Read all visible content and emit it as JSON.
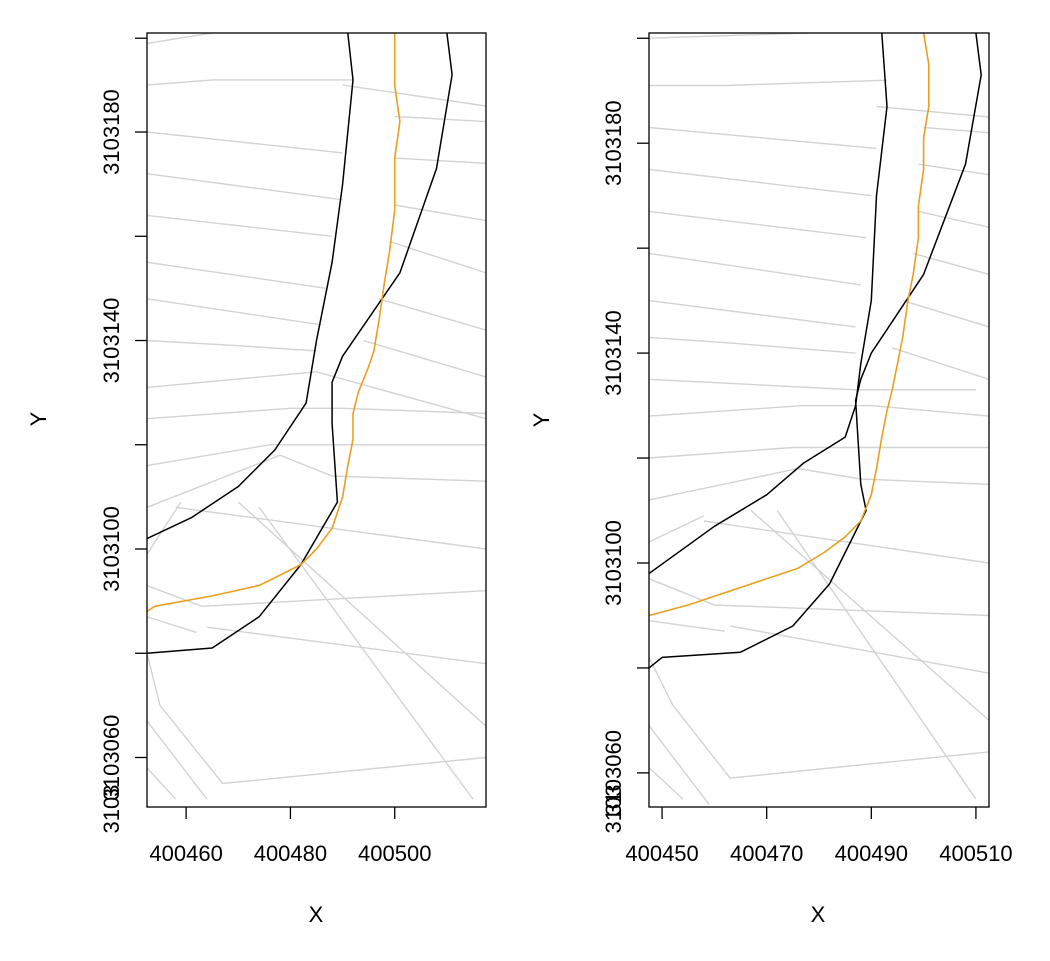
{
  "chart_data": [
    {
      "type": "line",
      "title": "",
      "xlabel": "X",
      "ylabel": "Y",
      "xlim": [
        400452.5,
        400517.5
      ],
      "ylim": [
        3103050.5,
        3103199
      ],
      "xticks": [
        400460,
        400480,
        400500
      ],
      "xtick_labels": [
        "400460",
        "400480",
        "400500"
      ],
      "yticks": [
        3103060,
        3103100,
        3103140,
        3103180
      ],
      "ytick_labels": [
        "3103060",
        "3103100",
        "3103140",
        "3103180"
      ],
      "ytick_minor": [
        3103080,
        3103120,
        3103160,
        3103198
      ],
      "colors": {
        "banks": "#000000",
        "centerline": "#e8a020",
        "voronoi": "#d3d3d3"
      },
      "series": [
        {
          "name": "left-bank",
          "color": "#000000",
          "points": [
            [
              400491,
              3103199
            ],
            [
              400492,
              3103190
            ],
            [
              400490,
              3103170
            ],
            [
              400488,
              3103155
            ],
            [
              400485,
              3103140
            ],
            [
              400483,
              3103128
            ],
            [
              400477,
              3103119
            ],
            [
              400470,
              3103112
            ],
            [
              400461,
              3103106
            ],
            [
              400452.5,
              3103102
            ]
          ]
        },
        {
          "name": "right-bank",
          "color": "#000000",
          "points": [
            [
              400510,
              3103199
            ],
            [
              400511,
              3103191
            ],
            [
              400508,
              3103173
            ],
            [
              400501,
              3103153
            ],
            [
              400490,
              3103137
            ],
            [
              400488,
              3103132
            ],
            [
              400488,
              3103124
            ],
            [
              400489,
              3103109
            ],
            [
              400482,
              3103097
            ],
            [
              400474,
              3103087
            ],
            [
              400465,
              3103081
            ],
            [
              400452.5,
              3103080
            ]
          ]
        },
        {
          "name": "centerline",
          "color": "#e8a020",
          "points": [
            [
              400500,
              3103199
            ],
            [
              400500,
              3103189
            ],
            [
              400501,
              3103182
            ],
            [
              400500,
              3103175
            ],
            [
              400500,
              3103165
            ],
            [
              400499,
              3103157
            ],
            [
              400498,
              3103151
            ],
            [
              400497,
              3103144
            ],
            [
              400496,
              3103138
            ],
            [
              400495,
              3103135
            ],
            [
              400493,
              3103130
            ],
            [
              400492,
              3103126
            ],
            [
              400492,
              3103121
            ],
            [
              400491,
              3103116
            ],
            [
              400490,
              3103110
            ],
            [
              400488,
              3103104
            ],
            [
              400485,
              3103100
            ],
            [
              400482,
              3103097
            ],
            [
              400478,
              3103095
            ],
            [
              400474,
              3103093
            ],
            [
              400465,
              3103091
            ],
            [
              400454,
              3103089
            ],
            [
              400452.5,
              3103088
            ]
          ]
        }
      ],
      "voronoi_edges": [
        [
          [
            400452.5,
            3103197
          ],
          [
            400465,
            3103199
          ]
        ],
        [
          [
            400452.5,
            3103189
          ],
          [
            400465,
            3103190
          ],
          [
            400492,
            3103190
          ]
        ],
        [
          [
            400490,
            3103189
          ],
          [
            400517.5,
            3103185
          ]
        ],
        [
          [
            400452.5,
            3103180
          ],
          [
            400490,
            3103176
          ]
        ],
        [
          [
            400500,
            3103183
          ],
          [
            400517.5,
            3103182
          ]
        ],
        [
          [
            400452.5,
            3103172
          ],
          [
            400490,
            3103167
          ]
        ],
        [
          [
            400500,
            3103175
          ],
          [
            400517.5,
            3103174
          ]
        ],
        [
          [
            400452.5,
            3103164
          ],
          [
            400488,
            3103160
          ]
        ],
        [
          [
            400500,
            3103166
          ],
          [
            400517.5,
            3103163
          ]
        ],
        [
          [
            400452.5,
            3103155
          ],
          [
            400487,
            3103150
          ]
        ],
        [
          [
            400499,
            3103159
          ],
          [
            400517.5,
            3103153
          ]
        ],
        [
          [
            400452.5,
            3103148
          ],
          [
            400486,
            3103143
          ]
        ],
        [
          [
            400497,
            3103148
          ],
          [
            400517.5,
            3103142
          ]
        ],
        [
          [
            400452.5,
            3103140
          ],
          [
            400470,
            3103139
          ],
          [
            400485,
            3103138
          ]
        ],
        [
          [
            400494,
            3103140
          ],
          [
            400517.5,
            3103133
          ]
        ],
        [
          [
            400452.5,
            3103131
          ],
          [
            400485,
            3103134
          ],
          [
            400517.5,
            3103125
          ]
        ],
        [
          [
            400452.5,
            3103125
          ],
          [
            400480,
            3103127
          ],
          [
            400490,
            3103127
          ],
          [
            400517.5,
            3103126
          ]
        ],
        [
          [
            400452.5,
            3103116
          ],
          [
            400476,
            3103120
          ],
          [
            400488,
            3103120
          ],
          [
            400517.5,
            3103120
          ]
        ],
        [
          [
            400452.5,
            3103108
          ],
          [
            400478,
            3103118
          ],
          [
            400488,
            3103114
          ],
          [
            400517.5,
            3103113
          ]
        ],
        [
          [
            400452.5,
            3103099
          ],
          [
            400459,
            3103109
          ]
        ],
        [
          [
            400458,
            3103108
          ],
          [
            400517.5,
            3103100
          ]
        ],
        [
          [
            400452.5,
            3103093
          ],
          [
            400463,
            3103089
          ],
          [
            400517.5,
            3103092
          ]
        ],
        [
          [
            400452.5,
            3103087
          ],
          [
            400462,
            3103084
          ]
        ],
        [
          [
            400464,
            3103085
          ],
          [
            400517.5,
            3103078
          ]
        ],
        [
          [
            400452.5,
            3103080
          ],
          [
            400455,
            3103070
          ],
          [
            400467,
            3103055
          ],
          [
            400517.5,
            3103060
          ]
        ],
        [
          [
            400452.5,
            3103067
          ],
          [
            400464,
            3103052
          ]
        ],
        [
          [
            400452.5,
            3103058
          ],
          [
            400458,
            3103052
          ]
        ],
        [
          [
            400470,
            3103109
          ],
          [
            400517.5,
            3103066
          ]
        ],
        [
          [
            400474,
            3103108
          ],
          [
            400515,
            3103052
          ]
        ]
      ]
    },
    {
      "type": "line",
      "title": "",
      "xlabel": "X",
      "ylabel": "Y",
      "xlim": [
        400447.5,
        400512.5
      ],
      "ylim": [
        3103053.5,
        3103201
      ],
      "xticks": [
        400450,
        400470,
        400490,
        400510
      ],
      "xtick_labels": [
        "400450",
        "400470",
        "400490",
        "400510"
      ],
      "yticks": [
        3103060,
        3103100,
        3103140,
        3103180
      ],
      "ytick_labels": [
        "3103060",
        "3103100",
        "3103140",
        "3103180"
      ],
      "ytick_minor": [
        3103080,
        3103120,
        3103160,
        3103200
      ],
      "colors": {
        "banks": "#000000",
        "centerline": "#e8a020",
        "voronoi": "#d3d3d3"
      },
      "series": [
        {
          "name": "left-bank",
          "color": "#000000",
          "points": [
            [
              400492,
              3103201
            ],
            [
              400493,
              3103187
            ],
            [
              400491,
              3103170
            ],
            [
              400490,
              3103150
            ],
            [
              400488,
              3103138
            ],
            [
              400487,
              3103130
            ],
            [
              400485,
              3103124
            ],
            [
              400477,
              3103119
            ],
            [
              400470,
              3103113
            ],
            [
              400460,
              3103107
            ],
            [
              400447.5,
              3103098
            ]
          ]
        },
        {
          "name": "right-bank",
          "color": "#000000",
          "points": [
            [
              400510,
              3103201
            ],
            [
              400511,
              3103193
            ],
            [
              400508,
              3103176
            ],
            [
              400500,
              3103155
            ],
            [
              400490,
              3103140
            ],
            [
              400488,
              3103135
            ],
            [
              400487,
              3103131
            ],
            [
              400488,
              3103115
            ],
            [
              400489,
              3103110
            ],
            [
              400482,
              3103096
            ],
            [
              400475,
              3103088
            ],
            [
              400465,
              3103083
            ],
            [
              400450,
              3103082
            ],
            [
              400447.5,
              3103080
            ]
          ]
        },
        {
          "name": "centerline",
          "color": "#e8a020",
          "points": [
            [
              400500,
              3103201
            ],
            [
              400501,
              3103195
            ],
            [
              400501,
              3103187
            ],
            [
              400500,
              3103181
            ],
            [
              400500,
              3103175
            ],
            [
              400499,
              3103168
            ],
            [
              400499,
              3103162
            ],
            [
              400498,
              3103155
            ],
            [
              400497,
              3103150
            ],
            [
              400496,
              3103143
            ],
            [
              400495,
              3103138
            ],
            [
              400494,
              3103133
            ],
            [
              400493,
              3103129
            ],
            [
              400492,
              3103124
            ],
            [
              400491,
              3103118
            ],
            [
              400490,
              3103113
            ],
            [
              400488,
              3103108
            ],
            [
              400485,
              3103105
            ],
            [
              400481,
              3103102
            ],
            [
              400476,
              3103099
            ],
            [
              400467,
              3103096
            ],
            [
              400455,
              3103092
            ],
            [
              400447.5,
              3103090
            ]
          ]
        }
      ],
      "voronoi_edges": [
        [
          [
            400447.5,
            3103200
          ],
          [
            400478,
            3103201
          ]
        ],
        [
          [
            400447.5,
            3103191
          ],
          [
            400462,
            3103191
          ],
          [
            400493,
            3103192
          ]
        ],
        [
          [
            400491,
            3103187
          ],
          [
            400512.5,
            3103185
          ]
        ],
        [
          [
            400447.5,
            3103183
          ],
          [
            400491,
            3103179
          ]
        ],
        [
          [
            400500,
            3103183
          ],
          [
            400512.5,
            3103182
          ]
        ],
        [
          [
            400447.5,
            3103175
          ],
          [
            400490,
            3103170
          ]
        ],
        [
          [
            400499,
            3103176
          ],
          [
            400512.5,
            3103174
          ]
        ],
        [
          [
            400447.5,
            3103167
          ],
          [
            400489,
            3103162
          ]
        ],
        [
          [
            400499,
            3103167
          ],
          [
            400512.5,
            3103164
          ]
        ],
        [
          [
            400447.5,
            3103159
          ],
          [
            400488,
            3103153
          ]
        ],
        [
          [
            400498,
            3103159
          ],
          [
            400512.5,
            3103155
          ]
        ],
        [
          [
            400447.5,
            3103150
          ],
          [
            400487,
            3103145
          ]
        ],
        [
          [
            400496,
            3103150
          ],
          [
            400512.5,
            3103145
          ]
        ],
        [
          [
            400447.5,
            3103143
          ],
          [
            400462,
            3103142
          ],
          [
            400487,
            3103140
          ]
        ],
        [
          [
            400494,
            3103141
          ],
          [
            400512.5,
            3103135
          ]
        ],
        [
          [
            400447.5,
            3103135
          ],
          [
            400487,
            3103133
          ],
          [
            400510,
            3103133
          ]
        ],
        [
          [
            400447.5,
            3103128
          ],
          [
            400477,
            3103130
          ],
          [
            400490,
            3103130
          ],
          [
            400512.5,
            3103128
          ]
        ],
        [
          [
            400447.5,
            3103120
          ],
          [
            400475,
            3103122
          ],
          [
            400488,
            3103122
          ],
          [
            400512.5,
            3103122
          ]
        ],
        [
          [
            400447.5,
            3103112
          ],
          [
            400476,
            3103118
          ],
          [
            400488,
            3103116
          ],
          [
            400512.5,
            3103115
          ]
        ],
        [
          [
            400447.5,
            3103104
          ],
          [
            400458,
            3103109
          ]
        ],
        [
          [
            400458,
            3103108
          ],
          [
            400512.5,
            3103100
          ]
        ],
        [
          [
            400447.5,
            3103097
          ],
          [
            400460,
            3103092
          ],
          [
            400512.5,
            3103090
          ]
        ],
        [
          [
            400447.5,
            3103089
          ],
          [
            400462,
            3103087
          ]
        ],
        [
          [
            400463,
            3103088
          ],
          [
            400512.5,
            3103079
          ]
        ],
        [
          [
            400447.5,
            3103082
          ],
          [
            400452,
            3103073
          ],
          [
            400463,
            3103059
          ],
          [
            400512.5,
            3103064
          ]
        ],
        [
          [
            400447.5,
            3103069
          ],
          [
            400459,
            3103054
          ]
        ],
        [
          [
            400447.5,
            3103061
          ],
          [
            400454,
            3103055
          ]
        ],
        [
          [
            400467,
            3103110
          ],
          [
            400512.5,
            3103070
          ]
        ],
        [
          [
            400472,
            3103110
          ],
          [
            400510,
            3103055
          ]
        ]
      ]
    }
  ]
}
